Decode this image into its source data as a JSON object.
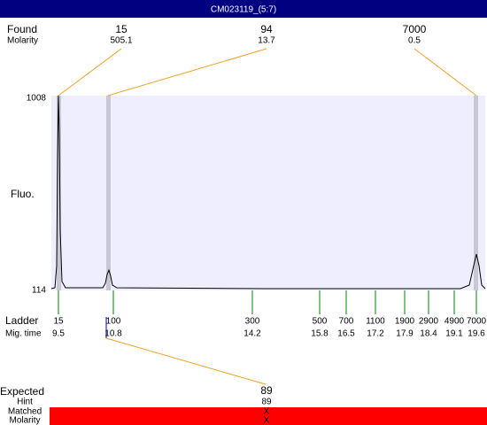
{
  "title": "CM023119_(5:7)",
  "found": {
    "label": "Found",
    "molarity_label": "Molarity",
    "peaks": [
      {
        "size": "15",
        "molarity": "505.1"
      },
      {
        "size": "94",
        "molarity": "13.7"
      },
      {
        "size": "7000",
        "molarity": "0.5"
      }
    ]
  },
  "axis": {
    "label": "Fluo.",
    "top": "1008",
    "bottom": "114"
  },
  "ladder": {
    "label": "Ladder",
    "time_label": "Mig. time",
    "entries": [
      {
        "size": "15",
        "time": "9.5"
      },
      {
        "size": "100",
        "time": "10.8"
      },
      {
        "size": "300",
        "time": "14.2"
      },
      {
        "size": "500",
        "time": "15.8"
      },
      {
        "size": "700",
        "time": "16.5"
      },
      {
        "size": "1100",
        "time": "17.2"
      },
      {
        "size": "1900",
        "time": "17.9"
      },
      {
        "size": "2900",
        "time": "18.4"
      },
      {
        "size": "4900",
        "time": "19.1"
      },
      {
        "size": "7000",
        "time": "19.6"
      }
    ]
  },
  "expected": {
    "label": "Expected",
    "value": "89",
    "hint_label": "Hint",
    "hint": "89",
    "matched_label": "Matched",
    "matched": "X",
    "molarity_label": "Molarity",
    "molarity": "X"
  }
}
